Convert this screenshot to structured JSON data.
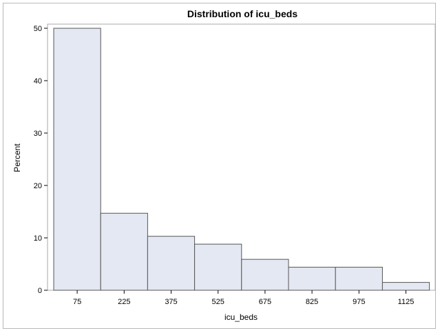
{
  "chart_data": {
    "type": "bar",
    "title": "Distribution of icu_beds",
    "xlabel": "icu_beds",
    "ylabel": "Percent",
    "categories": [
      "75",
      "225",
      "375",
      "525",
      "675",
      "825",
      "975",
      "1125"
    ],
    "values": [
      50.0,
      14.7,
      10.3,
      8.8,
      5.9,
      4.4,
      4.4,
      1.5
    ],
    "yticks": [
      0,
      10,
      20,
      30,
      40,
      50
    ],
    "ylim": [
      0,
      50
    ],
    "grid": false,
    "legend": "none",
    "bar_fill": "#e3e8f2",
    "bar_stroke": "#555555"
  }
}
